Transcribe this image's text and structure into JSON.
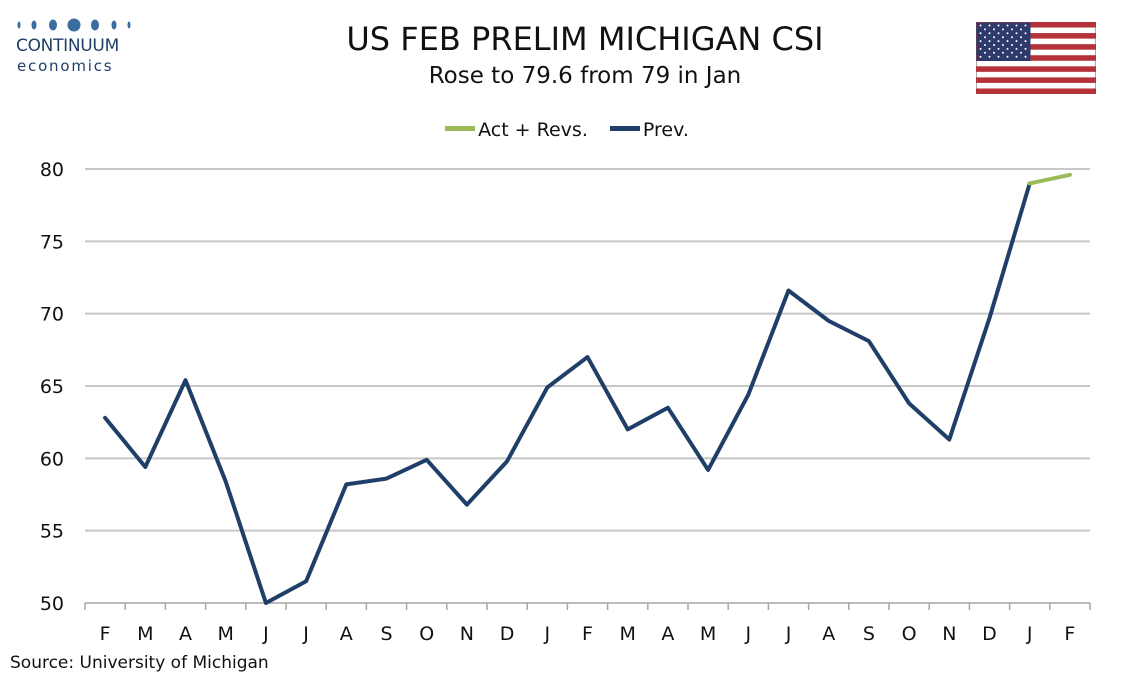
{
  "logo": {
    "line1": "CONTINUUM",
    "line2": "economics",
    "color": "#1f3f68"
  },
  "flag": {
    "icon": "us-flag-icon"
  },
  "chart_data": {
    "type": "line",
    "title": "US FEB PRELIM MICHIGAN CSI",
    "subtitle": "Rose to 79.6 from 79 in Jan",
    "xlabel": "",
    "ylabel": "",
    "ylim": [
      50,
      80
    ],
    "yticks": [
      50,
      55,
      60,
      65,
      70,
      75,
      80
    ],
    "grid": true,
    "legend_position": "top-center",
    "categories": [
      "F",
      "M",
      "A",
      "M",
      "J",
      "J",
      "A",
      "S",
      "O",
      "N",
      "D",
      "J",
      "F",
      "M",
      "A",
      "M",
      "J",
      "J",
      "A",
      "S",
      "O",
      "N",
      "D",
      "J",
      "F"
    ],
    "series": [
      {
        "name": "Act + Revs.",
        "color": "#9bbb59",
        "values": [
          null,
          null,
          null,
          null,
          null,
          null,
          null,
          null,
          null,
          null,
          null,
          null,
          null,
          null,
          null,
          null,
          null,
          null,
          null,
          null,
          null,
          null,
          null,
          79.0,
          79.6
        ]
      },
      {
        "name": "Prev.",
        "color": "#1f3f68",
        "values": [
          62.8,
          59.4,
          65.4,
          58.4,
          50.0,
          51.5,
          58.2,
          58.6,
          59.9,
          56.8,
          59.8,
          64.9,
          67.0,
          62.0,
          63.5,
          59.2,
          64.4,
          71.6,
          69.5,
          68.1,
          63.8,
          61.3,
          69.7,
          79.0,
          null
        ]
      }
    ],
    "source": "Source: University of Michigan"
  }
}
